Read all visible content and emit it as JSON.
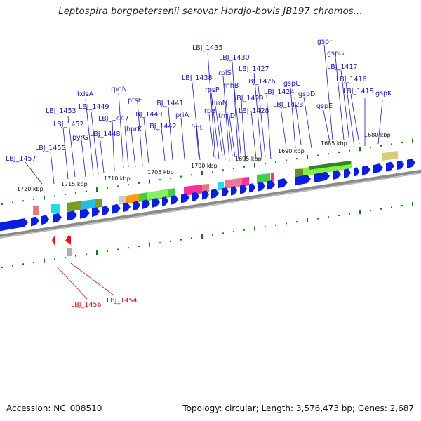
{
  "title": "Leptospira borgpetersenii serovar Hardjo-bovis JB197 chromos...",
  "footer": {
    "accession": "Accession: NC_008510",
    "summary": "Topology: circular; Length: 3,576,473 bp; Genes: 2,687"
  },
  "colors": {
    "forward_gene": "#0a1ee0",
    "reverse_gene": "#ee1111",
    "backbone": "#888888",
    "tick": "#117a11",
    "label_blue": "#1a1ab4",
    "label_red": "#cc1111"
  },
  "kbp_ticks": [
    "1720 kbp",
    "1715 kbp",
    "1710 kbp",
    "1705 kbp",
    "1700 kbp",
    "1695 kbp",
    "1690 kbp",
    "1685 kbp",
    "1680 kbp"
  ],
  "labels_blue": [
    "gspF",
    "gspG",
    "LBJ_1435",
    "LBJ_1430",
    "LBJ_1417",
    "rplS",
    "LBJ_1427",
    "LBJ_1416",
    "LBJ_1438",
    "rnhB",
    "LBJ_1426",
    "gspC",
    "LBJ_1415",
    "gspK",
    "rpoN",
    "rpsP",
    "LBJ_1424",
    "gspD",
    "kdsA",
    "ptsH",
    "rimM",
    "LBJ_1429",
    "LBJ_1449",
    "LBJ_1441",
    "rpe",
    "LBJ_1423",
    "gspE",
    "LBJ_1453",
    "LBJ_1447",
    "LBJ_1443",
    "priA",
    "trmD",
    "LBJ_1428",
    "LBJ_1452",
    "hprK",
    "LBJ_1442",
    "fmt",
    "pyrG",
    "LBJ_1448",
    "LBJ_1455",
    "LBJ_1457"
  ],
  "labels_red": [
    "LBJ_1456",
    "LBJ_1454"
  ]
}
